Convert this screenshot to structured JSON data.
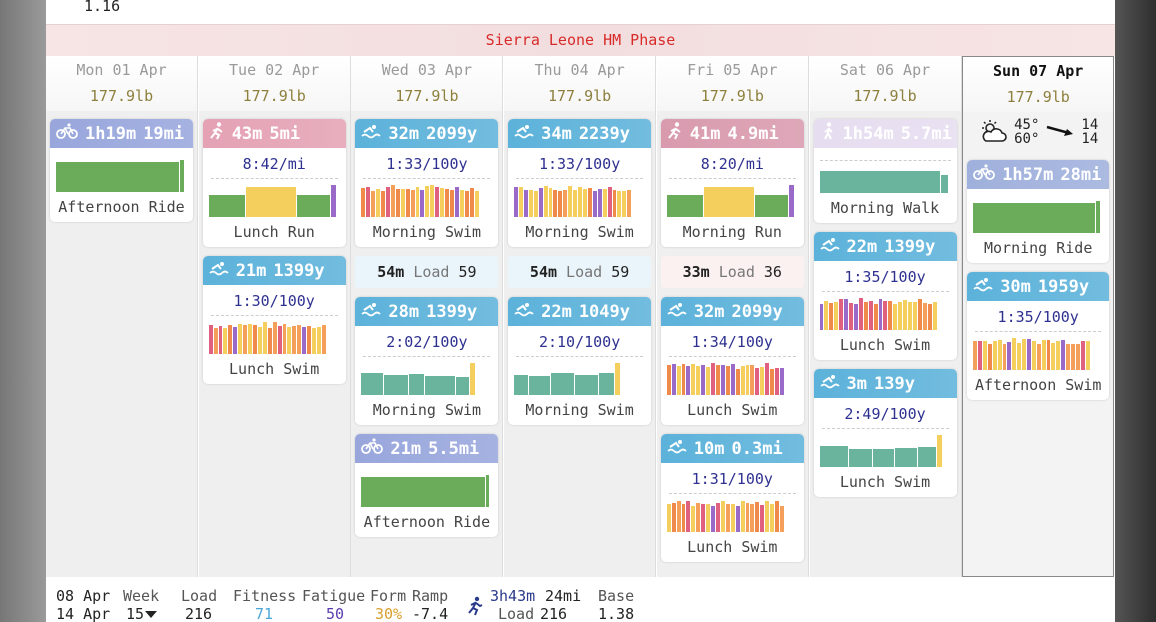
{
  "top_value": 1.16,
  "phase": "Sierra Leone HM Phase",
  "days": [
    {
      "date": "Mon 01 Apr",
      "weight": "177.9lb",
      "items": [
        {
          "sport": "ride",
          "color": "#98a6dc",
          "duration": "1h19m",
          "distance": "19mi",
          "name": "Afternoon Ride"
        }
      ]
    },
    {
      "date": "Tue 02 Apr",
      "weight": "177.9lb",
      "items": [
        {
          "sport": "run",
          "color": "#e4a2b4",
          "duration": "43m",
          "distance": "5mi",
          "pace": "8:42/mi",
          "name": "Lunch Run"
        },
        {
          "sport": "swim",
          "color": "#5cb2da",
          "duration": "21m",
          "distance": "1399y",
          "pace": "1:30/100y",
          "name": "Lunch Swim"
        }
      ]
    },
    {
      "date": "Wed 03 Apr",
      "weight": "177.9lb",
      "items": [
        {
          "sport": "swim",
          "color": "#5cb2da",
          "duration": "32m",
          "distance": "2099y",
          "pace": "1:33/100y",
          "name": "Morning Swim"
        },
        {
          "duration": "54m",
          "label": "Load",
          "load": 59,
          "color": "#eaf5fb"
        },
        {
          "sport": "swim",
          "color": "#5cb2da",
          "duration": "28m",
          "distance": "1399y",
          "pace": "2:02/100y",
          "name": "Morning Swim"
        },
        {
          "sport": "ride",
          "color": "#98a6dc",
          "duration": "21m",
          "distance": "5.5mi",
          "name": "Afternoon Ride"
        }
      ]
    },
    {
      "date": "Thu 04 Apr",
      "weight": "177.9lb",
      "items": [
        {
          "sport": "swim",
          "color": "#5cb2da",
          "duration": "34m",
          "distance": "2239y",
          "pace": "1:33/100y",
          "name": "Morning Swim"
        },
        {
          "duration": "54m",
          "label": "Load",
          "load": 59,
          "color": "#eaf5fb"
        },
        {
          "sport": "swim",
          "color": "#5cb2da",
          "duration": "22m",
          "distance": "1049y",
          "pace": "2:10/100y",
          "name": "Morning Swim"
        }
      ]
    },
    {
      "date": "Fri 05 Apr",
      "weight": "177.9lb",
      "items": [
        {
          "sport": "run",
          "color": "#d99aae",
          "duration": "41m",
          "distance": "4.9mi",
          "pace": "8:20/mi",
          "name": "Morning Run"
        },
        {
          "duration": "33m",
          "label": "Load",
          "load": 36,
          "color": "#fcf1f1"
        },
        {
          "sport": "swim",
          "color": "#5cb2da",
          "duration": "32m",
          "distance": "2099y",
          "pace": "1:34/100y",
          "name": "Lunch Swim"
        },
        {
          "sport": "swim",
          "color": "#5cb2da",
          "duration": "10m",
          "distance": "0.3mi",
          "pace": "1:31/100y",
          "name": "Lunch Swim"
        }
      ]
    },
    {
      "date": "Sat 06 Apr",
      "weight": "177.9lb",
      "items": [
        {
          "sport": "walk",
          "color": "#e6ddf0",
          "duration": "1h54m",
          "distance": "5.7mi",
          "name": "Morning Walk"
        },
        {
          "sport": "swim",
          "color": "#5cb2da",
          "duration": "22m",
          "distance": "1399y",
          "pace": "1:35/100y",
          "name": "Lunch Swim"
        },
        {
          "sport": "swim",
          "color": "#5cb2da",
          "duration": "3m",
          "distance": "139y",
          "pace": "2:49/100y",
          "name": "Lunch Swim"
        }
      ]
    },
    {
      "date": "Sun 07 Apr",
      "weight": "177.9lb",
      "today": true,
      "weather": {
        "low": "45°",
        "high": "60°",
        "wind": 14,
        "gust": 14
      },
      "items": [
        {
          "sport": "ride",
          "color": "#9fb0dc",
          "duration": "1h57m",
          "distance": "28mi",
          "name": "Morning Ride"
        },
        {
          "sport": "swim",
          "color": "#5cb2da",
          "duration": "30m",
          "distance": "1959y",
          "pace": "1:35/100y",
          "name": "Afternoon Swim"
        }
      ]
    }
  ],
  "footer": {
    "start": "08 Apr",
    "end": "14 Apr",
    "week_label": "Week",
    "week": 15,
    "load_label": "Load",
    "load": 216,
    "fitness_label": "Fitness",
    "fitness": 71,
    "fatigue_label": "Fatigue",
    "fatigue": 50,
    "form_label": "Form",
    "form": "30%",
    "ramp_label": "Ramp",
    "ramp": -7.4,
    "duration": "3h43m",
    "distance": "24mi",
    "week_load_label": "Load",
    "week_load": 216,
    "base_label": "Base",
    "base": 1.38
  }
}
